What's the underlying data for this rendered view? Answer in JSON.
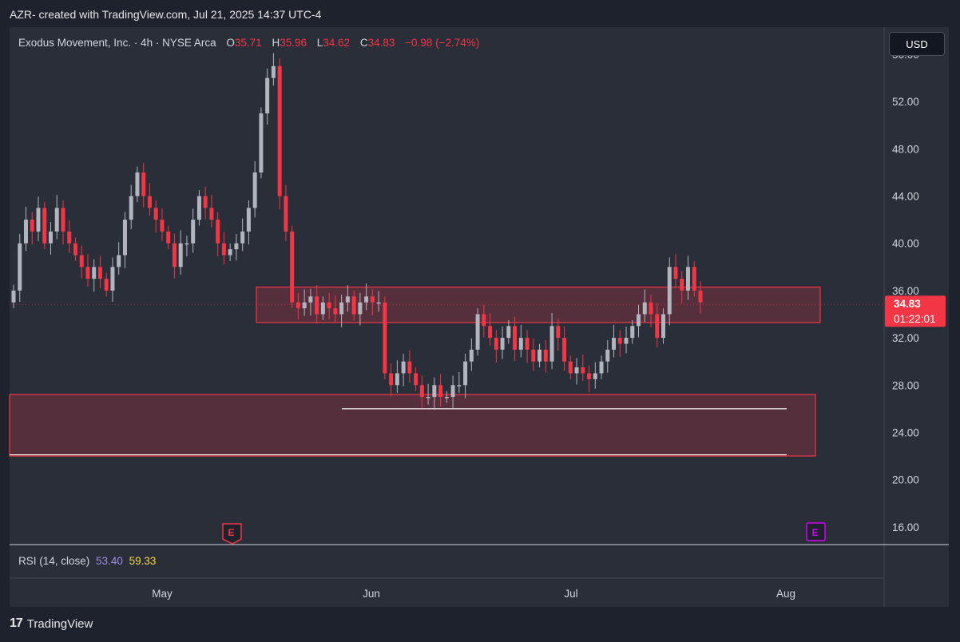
{
  "header": {
    "title": "AZR- created with TradingView.com, Jul 21, 2025 14:37 UTC-4"
  },
  "legend": {
    "symbol": "Exodus Movement, Inc. · 4h · NYSE Arca",
    "o_label": "O",
    "o_value": "35.71",
    "h_label": "H",
    "h_value": "35.96",
    "l_label": "L",
    "l_value": "34.62",
    "c_label": "C",
    "c_value": "34.83",
    "change": "−0.98 (−2.74%)"
  },
  "currency_button": "USD",
  "price_tag": {
    "price": "34.83",
    "countdown": "01:22:01"
  },
  "earnings_marker": "E",
  "rsi": {
    "label": "RSI (14, close)",
    "value1": "53.40",
    "value2": "59.33"
  },
  "footer": {
    "brand": "TradingView",
    "logo_text": "17"
  },
  "colors": {
    "up": "#b2b5be",
    "down": "#f23645",
    "zone": "#f23645",
    "earnings_red": "#f23645",
    "earnings_purple": "#d500f9"
  },
  "chart_data": {
    "type": "candlestick",
    "interval": "4h",
    "ylim": [
      14.5,
      58.3
    ],
    "y_ticks": [
      "56.00",
      "52.00",
      "48.00",
      "44.00",
      "40.00",
      "36.00",
      "32.00",
      "28.00",
      "24.00",
      "20.00",
      "16.00"
    ],
    "x_ticks": [
      "May",
      "Jun",
      "Jul",
      "Aug"
    ],
    "last_price": 34.83,
    "zones": [
      {
        "name": "resistance-zone",
        "top": 36.3,
        "bottom": 33.3
      },
      {
        "name": "demand-zone",
        "top": 27.2,
        "bottom": 22.0
      }
    ],
    "levels": [
      26.0,
      22.1
    ],
    "close_series": [
      36,
      40,
      42,
      41,
      43,
      40,
      41,
      43,
      41,
      40,
      39,
      38,
      37,
      38,
      37,
      36,
      38,
      39,
      42,
      44,
      46,
      44,
      43,
      42,
      41,
      40,
      38,
      40,
      40,
      42,
      44,
      43,
      42,
      40,
      39,
      39.5,
      40,
      41,
      43,
      46,
      51,
      54,
      55,
      44,
      41,
      35,
      34.5,
      35,
      35.5,
      34,
      35,
      34.5,
      34,
      35,
      35.5,
      34,
      35,
      35.5,
      35,
      35,
      29,
      28,
      29,
      30,
      29,
      28,
      27,
      27,
      28,
      27,
      27,
      28,
      28,
      30,
      31,
      34,
      33,
      32,
      31,
      32,
      33,
      31,
      32,
      31,
      30,
      31,
      30,
      33,
      32,
      30,
      29,
      29.5,
      29,
      28.5,
      29,
      30,
      31,
      32,
      31.5,
      32,
      33,
      34,
      35,
      34,
      32,
      34,
      38,
      37,
      36,
      38,
      36,
      35
    ],
    "earnings_dates_on_x": [
      "May (before Jun)",
      "Aug"
    ]
  }
}
